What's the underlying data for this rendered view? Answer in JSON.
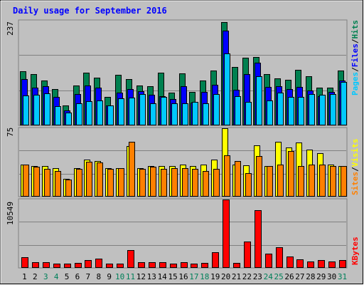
{
  "title": "Daily usage for September 2016",
  "chart_data": [
    {
      "type": "bar",
      "panel": "pages-files-hits",
      "ymax_label": "237",
      "ylim": [
        0,
        237
      ],
      "categories": [
        "1",
        "2",
        "3",
        "4",
        "5",
        "6",
        "7",
        "8",
        "9",
        "10",
        "11",
        "12",
        "13",
        "14",
        "15",
        "16",
        "17",
        "18",
        "19",
        "20",
        "21",
        "22",
        "23",
        "24",
        "25",
        "26",
        "27",
        "28",
        "29",
        "30",
        "31"
      ],
      "weekend_days": [
        "3",
        "4",
        "10",
        "11",
        "17",
        "18",
        "24",
        "25",
        "31"
      ],
      "legend": [
        {
          "name": "Pages",
          "color": "#00c8ff"
        },
        {
          "name": "Files",
          "color": "#0000ff"
        },
        {
          "name": "Hits",
          "color": "#008050"
        }
      ],
      "series": [
        {
          "name": "Hits",
          "values": [
            122,
            116,
            100,
            81,
            44,
            90,
            119,
            107,
            64,
            114,
            104,
            90,
            88,
            119,
            73,
            117,
            75,
            101,
            124,
            234,
            132,
            152,
            154,
            115,
            106,
            103,
            125,
            110,
            84,
            84,
            123
          ]
        },
        {
          "name": "Files",
          "values": [
            104,
            84,
            87,
            63,
            33,
            69,
            90,
            84,
            44,
            73,
            81,
            77,
            68,
            65,
            58,
            87,
            51,
            75,
            91,
            215,
            79,
            115,
            141,
            86,
            88,
            81,
            86,
            78,
            65,
            75,
            101
          ]
        },
        {
          "name": "Pages",
          "values": [
            66,
            68,
            72,
            42,
            28,
            48,
            53,
            56,
            44,
            60,
            61,
            70,
            48,
            64,
            49,
            49,
            52,
            48,
            70,
            162,
            65,
            52,
            111,
            55,
            73,
            63,
            63,
            70,
            68,
            70,
            98
          ]
        }
      ]
    },
    {
      "type": "bar",
      "panel": "sites-visits",
      "ymax_label": "75",
      "ylim": [
        0,
        75
      ],
      "legend": [
        {
          "name": "Sites",
          "color": "#ff8000"
        },
        {
          "name": "Visits",
          "color": "#ffff00"
        }
      ],
      "series": [
        {
          "name": "Visits",
          "values": [
            35,
            33,
            33,
            31,
            19,
            31,
            40,
            39,
            31,
            31,
            55,
            31,
            33,
            33,
            33,
            35,
            33,
            35,
            40,
            75,
            35,
            34,
            56,
            33,
            60,
            54,
            59,
            51,
            47,
            35,
            33
          ]
        },
        {
          "name": "Sites",
          "values": [
            35,
            32,
            30,
            28,
            18,
            30,
            38,
            37,
            30,
            31,
            60,
            30,
            32,
            30,
            31,
            31,
            30,
            28,
            30,
            45,
            39,
            25,
            44,
            33,
            35,
            50,
            33,
            35,
            35,
            33,
            33
          ]
        }
      ]
    },
    {
      "type": "bar",
      "panel": "kbytes",
      "ymax_label": "10549",
      "ylim": [
        0,
        10549
      ],
      "legend": [
        {
          "name": "KBytes",
          "color": "#ff0000"
        }
      ],
      "series": [
        {
          "name": "KBytes",
          "values": [
            1580,
            750,
            750,
            500,
            500,
            700,
            1100,
            1340,
            540,
            540,
            2700,
            740,
            790,
            790,
            590,
            830,
            500,
            700,
            2340,
            10549,
            650,
            4000,
            8880,
            2080,
            3130,
            1650,
            1170,
            940,
            1070,
            940,
            1080
          ]
        }
      ]
    }
  ]
}
